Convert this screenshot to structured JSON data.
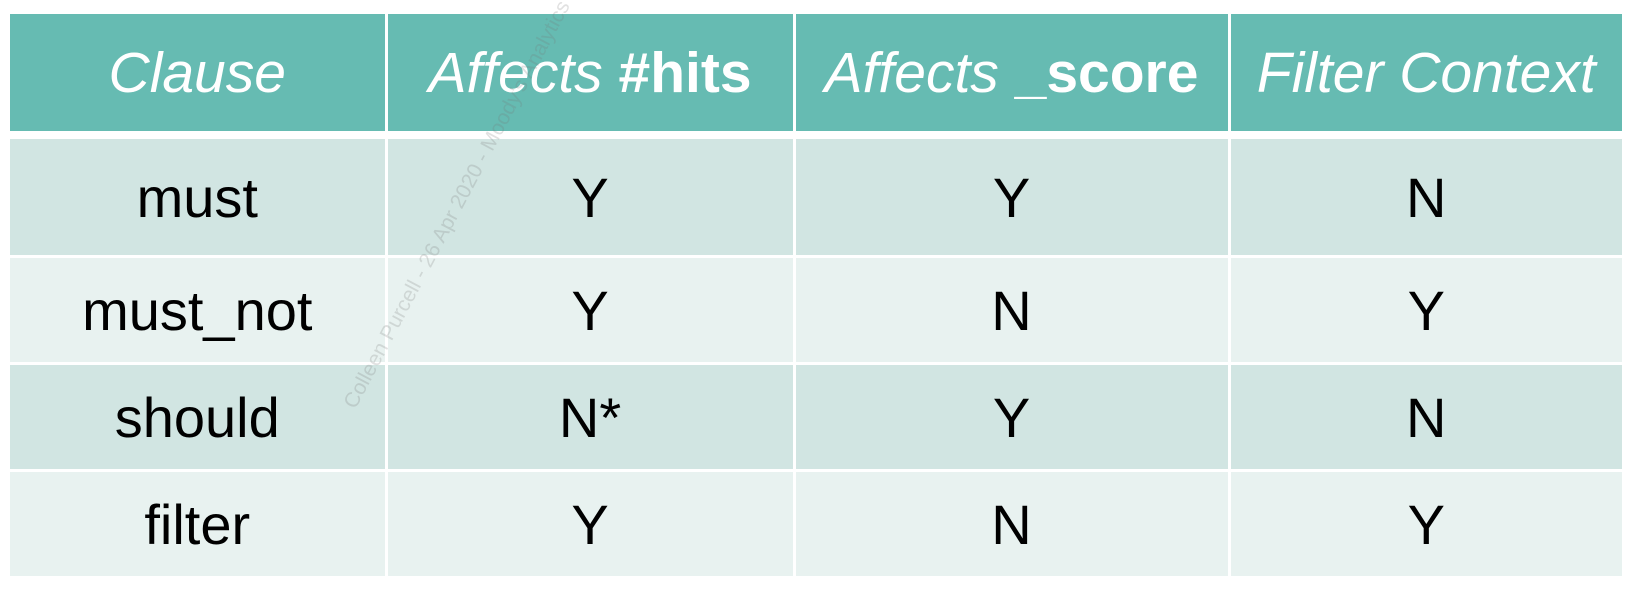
{
  "table": {
    "headers": [
      {
        "italic": "Clause",
        "bold": ""
      },
      {
        "italic": "Affects ",
        "bold": "#hits"
      },
      {
        "italic": "Affects ",
        "bold": "_score"
      },
      {
        "italic": "Filter Context",
        "bold": ""
      }
    ],
    "rows": [
      [
        "must",
        "Y",
        "Y",
        "N"
      ],
      [
        "must_not",
        "Y",
        "N",
        "Y"
      ],
      [
        "should",
        "N*",
        "Y",
        "N"
      ],
      [
        "filter",
        "Y",
        "N",
        "Y"
      ]
    ]
  },
  "watermark": "Colleen Purcell - 26 Apr 2020 - Moody's Analytics",
  "colors": {
    "header_bg": "#66bbb2",
    "row_dark": "#d1e5e2",
    "row_light": "#e8f2f0",
    "header_text": "#ffffff"
  }
}
